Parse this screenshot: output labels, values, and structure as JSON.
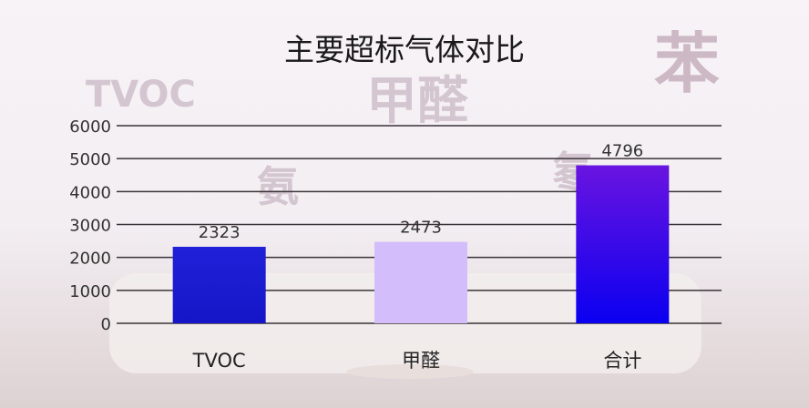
{
  "background_words": [
    "TVOC",
    "甲醛",
    "氨",
    "苯",
    "氡"
  ],
  "chart_data": {
    "type": "bar",
    "title": "主要超标气体对比",
    "categories": [
      "TVOC",
      "甲醛",
      "合计"
    ],
    "values": [
      2323,
      2473,
      4796
    ],
    "data_labels": [
      "2323",
      "2473",
      "4796"
    ],
    "ylim": [
      0,
      6000
    ],
    "yticks": [
      "0",
      "1000",
      "2000",
      "3000",
      "4000",
      "5000",
      "6000"
    ],
    "grid": true,
    "legend": "none",
    "colors": [
      "#1c1ad6",
      "#d3bdfa",
      "#5a10e8"
    ]
  }
}
